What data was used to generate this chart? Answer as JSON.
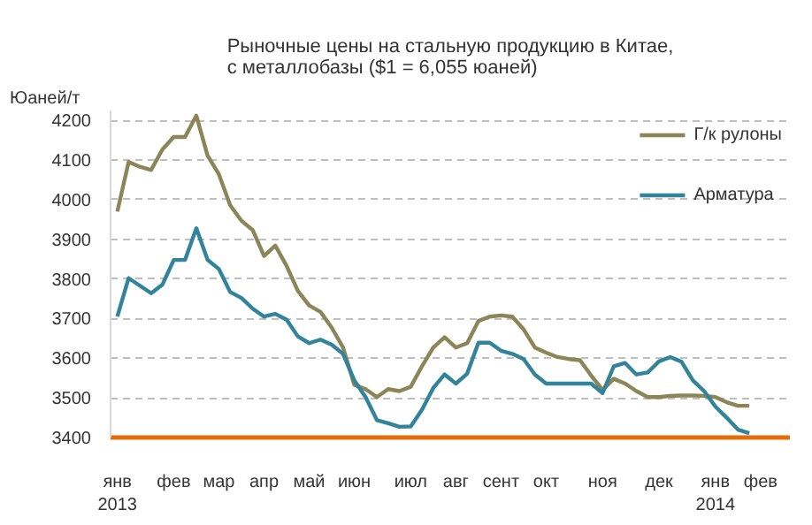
{
  "chart_data": {
    "type": "line",
    "title": "Рыночные цены на стальную продукцию в Китае,\nс металлобазы ($1 = 6,055 юаней)",
    "ylabel": "Юаней/т",
    "ylim": [
      3400,
      4225
    ],
    "yticks": [
      3400,
      3500,
      3600,
      3700,
      3800,
      3900,
      4000,
      4100,
      4200
    ],
    "categories": [
      "янв\n2013",
      null,
      null,
      null,
      null,
      "фев",
      null,
      null,
      null,
      "мар",
      null,
      null,
      null,
      "апр",
      null,
      null,
      null,
      "май",
      null,
      null,
      null,
      "июн",
      null,
      null,
      null,
      null,
      "июл",
      null,
      null,
      null,
      "авг",
      null,
      null,
      null,
      "сент",
      null,
      null,
      null,
      "окт",
      null,
      null,
      null,
      null,
      "ноя",
      null,
      null,
      null,
      null,
      "дек",
      null,
      null,
      null,
      null,
      "янв\n2014",
      null,
      null,
      null,
      "фев"
    ],
    "grid": "y",
    "legend": "top right",
    "line_style": "solid",
    "series": [
      {
        "name": "Г/к рулоны",
        "color": "#8c8558",
        "values": [
          3970,
          4095,
          4083,
          4075,
          4127,
          4158,
          4158,
          4212,
          4111,
          4064,
          3986,
          3947,
          3923,
          3858,
          3884,
          3833,
          3770,
          3733,
          3717,
          3677,
          3627,
          3533,
          3522,
          3502,
          3522,
          3517,
          3528,
          3580,
          3627,
          3653,
          3627,
          3638,
          3694,
          3705,
          3708,
          3705,
          3673,
          3627,
          3614,
          3603,
          3598,
          3595,
          3556,
          3520,
          3548,
          3536,
          3517,
          3502,
          3502,
          3505,
          3506,
          3506,
          3505,
          3502,
          3489,
          3480,
          3480,
          null
        ]
      },
      {
        "name": "Арматура",
        "color": "#31849b",
        "values": [
          3705,
          3802,
          3783,
          3764,
          3786,
          3848,
          3848,
          3928,
          3848,
          3825,
          3767,
          3752,
          3725,
          3705,
          3712,
          3697,
          3655,
          3638,
          3647,
          3634,
          3611,
          3544,
          3502,
          3444,
          3436,
          3427,
          3428,
          3470,
          3525,
          3559,
          3536,
          3561,
          3639,
          3639,
          3619,
          3611,
          3598,
          3559,
          3536,
          3536,
          3536,
          3536,
          3536,
          3512,
          3580,
          3588,
          3559,
          3564,
          3592,
          3603,
          3591,
          3544,
          3517,
          3478,
          3450,
          3420,
          3411,
          null
        ]
      }
    ]
  }
}
